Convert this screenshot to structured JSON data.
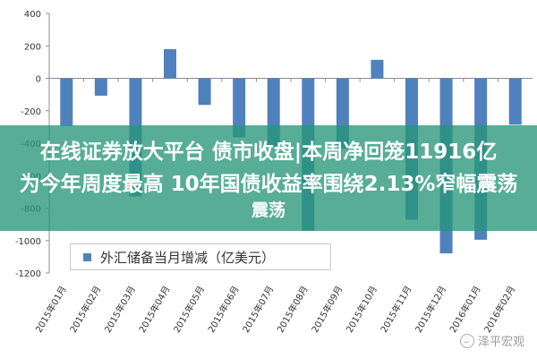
{
  "chart_data": {
    "type": "bar",
    "categories": [
      "2015年01月",
      "2015年02月",
      "2015年03月",
      "2015年04月",
      "2015年05月",
      "2015年06月",
      "2015年07月",
      "2015年08月",
      "2015年09月",
      "2015年10月",
      "2015年11月",
      "2015年12月",
      "2016年01月",
      "2016年02月"
    ],
    "series": [
      {
        "name": "外汇储备当月增减（亿美元）",
        "values": [
          -294,
          -107,
          -728,
          180,
          -164,
          -364,
          -424,
          -939,
          -433,
          114,
          -872,
          -1079,
          -995,
          -286
        ]
      }
    ],
    "ylim": [
      -1200,
      400
    ],
    "yticks": [
      400,
      200,
      0,
      -200,
      -400,
      -600,
      -800,
      -1000,
      -1200
    ],
    "grid": false,
    "legend_position": "bottom-left",
    "colors": {
      "bar": "#4f81bd",
      "axis": "#8c8c8c"
    }
  },
  "overlay": {
    "banner_lines": [
      "在线证券放大平台 债市收盘|本周净回笼11916亿",
      "为今年周度最高 10年国债收益率围绕2.13%窄幅震荡",
      "震荡"
    ],
    "banner_color": "#2a9678"
  },
  "watermark": {
    "text": "泽平宏观"
  }
}
